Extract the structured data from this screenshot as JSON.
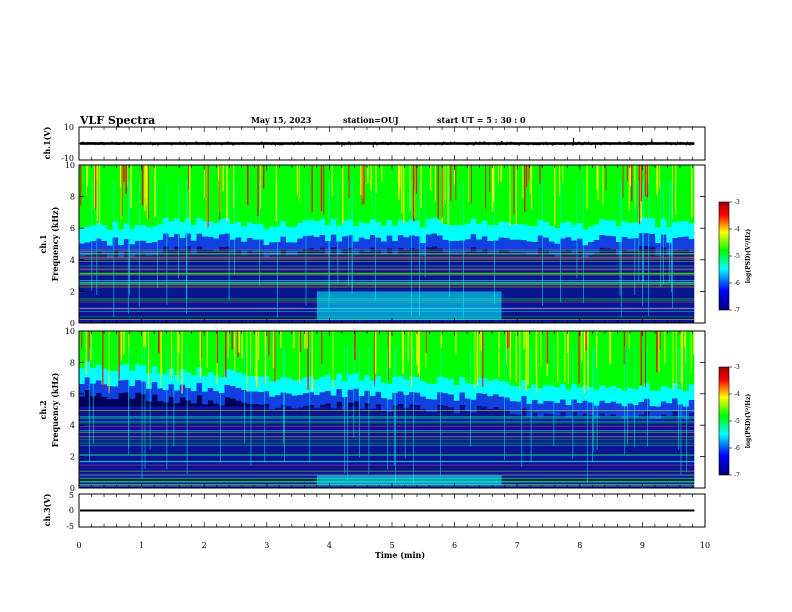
{
  "header": {
    "title": "VLF Spectra",
    "date": "May 15, 2023",
    "station": "station=OUJ",
    "start": "start  UT =  5 : 30 : 0"
  },
  "chart_data": [
    {
      "type": "line",
      "panel": "ch1-waveform",
      "ylabel": "ch.1(V)",
      "ylim": [
        -10,
        10
      ],
      "ytick_labels": [
        "10",
        "-10"
      ],
      "xlim": [
        0,
        10
      ],
      "baseline_value": 0,
      "spikes": [
        {
          "x": 2.95,
          "y": -2.8
        },
        {
          "x": 4.2,
          "y": -2
        },
        {
          "x": 4.7,
          "y": -2.5
        },
        {
          "x": 6.75,
          "y": 1.5
        },
        {
          "x": 7.9,
          "y": 3.5
        },
        {
          "x": 8.25,
          "y": -3
        },
        {
          "x": 9.15,
          "y": 3
        }
      ]
    },
    {
      "type": "heatmap",
      "panel": "ch1-spectrogram",
      "ylabel": "ch.1",
      "ylabel2": "Frequency (kHz)",
      "ylim": [
        0,
        10
      ],
      "ytick_labels": [
        "0",
        "2",
        "4",
        "6",
        "8",
        "10"
      ],
      "xlim": [
        0,
        10
      ],
      "colorbar": {
        "label": "log(PSD)(V²/Hz)",
        "range": [
          -7,
          -3
        ],
        "tick_labels": [
          "-3",
          "-4",
          "-5",
          "-6",
          "-7"
        ]
      },
      "activity_boundary_khz": [
        {
          "t": 0,
          "f": 5.5
        },
        {
          "t": 1,
          "f": 5.7
        },
        {
          "t": 2,
          "f": 5.9
        },
        {
          "t": 3,
          "f": 5.6
        },
        {
          "t": 4,
          "f": 5.8
        },
        {
          "t": 5,
          "f": 5.7
        },
        {
          "t": 6,
          "f": 5.8
        },
        {
          "t": 7,
          "f": 5.7
        },
        {
          "t": 8,
          "f": 5.6
        },
        {
          "t": 9,
          "f": 5.8
        },
        {
          "t": 9.8,
          "f": 5.6
        }
      ],
      "band_block": {
        "t_start": 3.8,
        "t_end": 6.75,
        "f_low": 0.2,
        "f_high": 2.0
      }
    },
    {
      "type": "heatmap",
      "panel": "ch2-spectrogram",
      "ylabel": "ch.2",
      "ylabel2": "Frequency (kHz)",
      "ylim": [
        0,
        10
      ],
      "ytick_labels": [
        "0",
        "2",
        "4",
        "6",
        "8",
        "10"
      ],
      "xlim": [
        0,
        10
      ],
      "colorbar": {
        "label": "log(PSD)(V²/Hz)",
        "range": [
          -7,
          -3
        ],
        "tick_labels": [
          "-3",
          "-4",
          "-5",
          "-6",
          "-7"
        ]
      },
      "activity_boundary_khz": [
        {
          "t": 0,
          "f": 7.3
        },
        {
          "t": 1,
          "f": 7.0
        },
        {
          "t": 2,
          "f": 6.8
        },
        {
          "t": 3,
          "f": 6.5
        },
        {
          "t": 4,
          "f": 6.5
        },
        {
          "t": 5,
          "f": 6.3
        },
        {
          "t": 6,
          "f": 6.2
        },
        {
          "t": 7,
          "f": 6.0
        },
        {
          "t": 8,
          "f": 5.9
        },
        {
          "t": 9,
          "f": 5.8
        },
        {
          "t": 9.8,
          "f": 5.8
        }
      ],
      "band_block": {
        "t_start": 3.8,
        "t_end": 6.75,
        "f_low": 0.2,
        "f_high": 0.8
      }
    },
    {
      "type": "line",
      "panel": "ch3-waveform",
      "ylabel": "ch.3(V)",
      "ylim": [
        -5,
        5
      ],
      "ytick_labels": [
        "5",
        "0",
        "-5"
      ],
      "xlim": [
        0,
        10
      ],
      "baseline_value": 0
    }
  ],
  "xaxis": {
    "label": "Time (min)",
    "tick_labels": [
      "0",
      "1",
      "2",
      "3",
      "4",
      "5",
      "6",
      "7",
      "8",
      "9",
      "10"
    ],
    "data_end": 9.83
  },
  "colors": {
    "background": "#ffffff",
    "axes": "#000000",
    "colormap": [
      "#00007a",
      "#0000ff",
      "#00ffff",
      "#00ff00",
      "#ffff00",
      "#ff0000",
      "#800000"
    ]
  }
}
